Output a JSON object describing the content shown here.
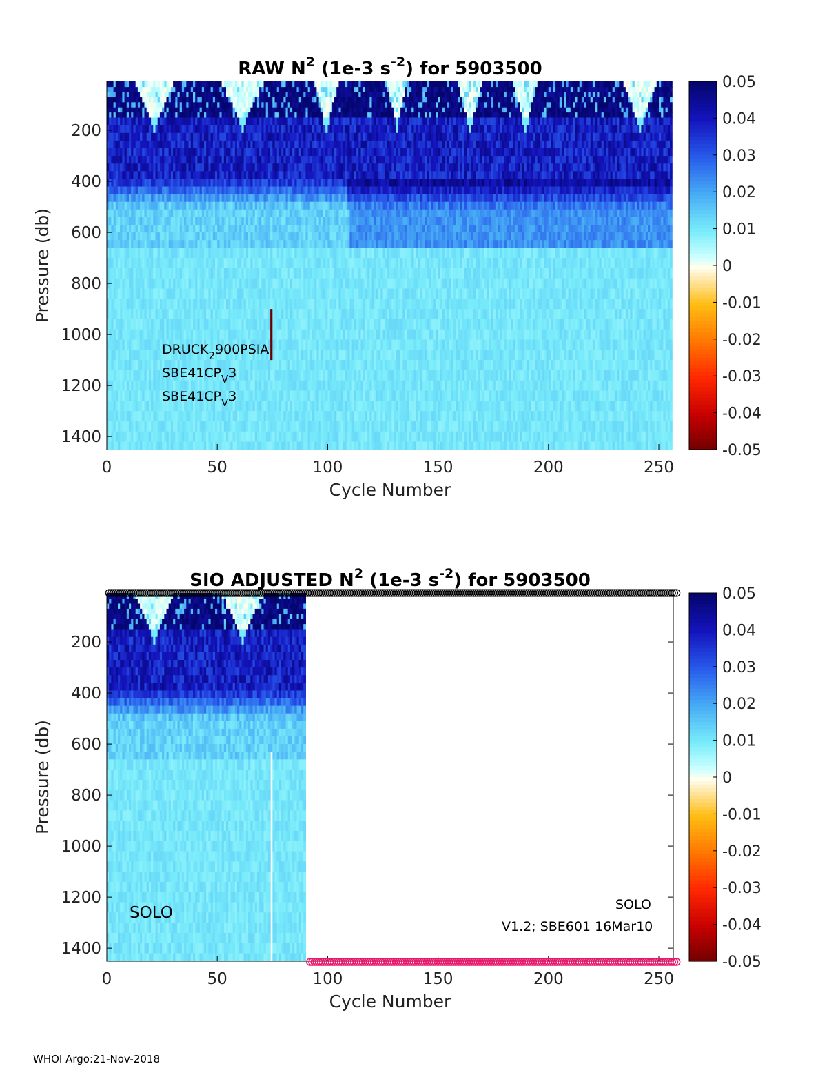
{
  "footer": "WHOI Argo:21-Nov-2018",
  "chart_data": [
    {
      "type": "heatmap",
      "title": {
        "pre": "RAW N",
        "sup1": "2",
        "mid": " (1e-3 s",
        "sup2": "-2",
        "post": ") for 5903500"
      },
      "xlabel": "Cycle Number",
      "ylabel": "Pressure (db)",
      "xlim": [
        0,
        256
      ],
      "ylim": [
        1450,
        8
      ],
      "xticks": [
        "0",
        "50",
        "100",
        "150",
        "200",
        "250"
      ],
      "yticks": [
        "200",
        "400",
        "600",
        "800",
        "1000",
        "1200",
        "1400"
      ],
      "clim": [
        -0.05,
        0.05
      ],
      "cticks": [
        "0.05",
        "0.04",
        "0.03",
        "0.02",
        "0.01",
        "0",
        "-0.01",
        "-0.02",
        "-0.03",
        "-0.04",
        "-0.05"
      ],
      "cycles_with_data": [
        1,
        256
      ],
      "annotations": [
        {
          "main": "DRUCK",
          "sub": "2",
          "rest": "900PSIA"
        },
        {
          "main": "SBE41CP",
          "sub": "V",
          "rest": "3"
        },
        {
          "main": "SBE41CP",
          "sub": "V",
          "rest": "3"
        }
      ],
      "features": {
        "winter_mixing_cycles": [
          22,
          62,
          100,
          132,
          165,
          190,
          242
        ],
        "anomaly_cycle": 75
      }
    },
    {
      "type": "heatmap",
      "title": {
        "pre": "SIO  ADJUSTED N",
        "sup1": "2",
        "mid": " (1e-3 s",
        "sup2": "-2",
        "post": ") for 5903500"
      },
      "xlabel": "Cycle Number",
      "ylabel": "Pressure (db)",
      "xlim": [
        0,
        256
      ],
      "ylim": [
        1450,
        8
      ],
      "xticks": [
        "0",
        "50",
        "100",
        "150",
        "200",
        "250"
      ],
      "yticks": [
        "200",
        "400",
        "600",
        "800",
        "1000",
        "1200",
        "1400"
      ],
      "clim": [
        -0.05,
        0.05
      ],
      "cticks": [
        "0.05",
        "0.04",
        "0.03",
        "0.02",
        "0.01",
        "0",
        "-0.01",
        "-0.02",
        "-0.03",
        "-0.04",
        "-0.05"
      ],
      "cycles_with_data": [
        1,
        90
      ],
      "annotations": [
        {
          "main": "SOLO"
        },
        {
          "main": "V1.2; SBE601 16Mar10"
        },
        {
          "main": "SOLO"
        }
      ],
      "markers": {
        "top_black_circles_cycles": [
          1,
          258
        ],
        "bottom_pink_circles_cycles": [
          92,
          258
        ]
      },
      "colors": {
        "top_markers": "#000000",
        "bottom_markers": "#e8196e"
      }
    }
  ]
}
